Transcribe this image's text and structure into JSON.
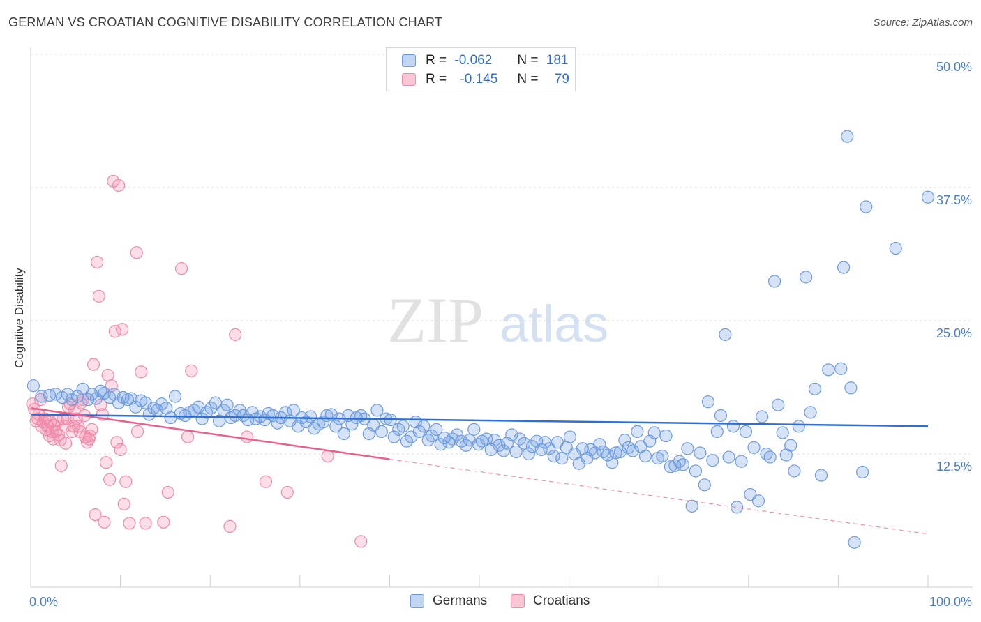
{
  "title": "GERMAN VS CROATIAN COGNITIVE DISABILITY CORRELATION CHART",
  "source": "Source: ZipAtlas.com",
  "watermark": "ZIPatlas",
  "legend_top": {
    "rows": [
      {
        "r_label": "R =",
        "r_value": "-0.062",
        "n_label": "N =",
        "n_value": "181"
      },
      {
        "r_label": "R =",
        "r_value": "-0.145",
        "n_label": "N =",
        "n_value": "79"
      }
    ]
  },
  "legend_bottom": [
    "Germans",
    "Croatians"
  ],
  "chart_data": {
    "type": "scatter",
    "title": "GERMAN VS CROATIAN COGNITIVE DISABILITY CORRELATION CHART",
    "xlabel": "",
    "ylabel": "Cognitive Disability",
    "xlim": [
      0,
      100
    ],
    "ylim": [
      0,
      50
    ],
    "x_tick_labels": [
      "0.0%",
      "100.0%"
    ],
    "y_tick_labels": [
      "12.5%",
      "25.0%",
      "37.5%",
      "50.0%"
    ],
    "y_ticks": [
      12.5,
      25.0,
      37.5,
      50.0
    ],
    "grid": true,
    "legend_position": "top-center",
    "colors": {
      "Germans": "#6c9be0",
      "Croatians": "#f08aaa",
      "germans_line": "#2f6fd1",
      "croatians_line": "#e8608c"
    },
    "series": [
      {
        "name": "Germans",
        "r": -0.062,
        "n": 181,
        "trend": {
          "x": [
            0,
            100
          ],
          "y": [
            16.2,
            15.1
          ]
        },
        "points": [
          [
            0.3,
            18.9
          ],
          [
            1.2,
            17.9
          ],
          [
            2.1,
            18.0
          ],
          [
            2.8,
            18.1
          ],
          [
            3.5,
            17.8
          ],
          [
            4.1,
            18.1
          ],
          [
            4.6,
            17.6
          ],
          [
            5.2,
            17.9
          ],
          [
            5.8,
            18.6
          ],
          [
            6.4,
            17.6
          ],
          [
            6.8,
            18.1
          ],
          [
            7.3,
            17.7
          ],
          [
            7.8,
            18.4
          ],
          [
            8.2,
            18.2
          ],
          [
            8.8,
            17.8
          ],
          [
            9.3,
            18.1
          ],
          [
            9.8,
            17.3
          ],
          [
            10.3,
            17.8
          ],
          [
            10.8,
            17.6
          ],
          [
            11.2,
            17.7
          ],
          [
            11.7,
            16.9
          ],
          [
            12.3,
            17.5
          ],
          [
            12.8,
            17.3
          ],
          [
            13.2,
            16.2
          ],
          [
            13.7,
            16.8
          ],
          [
            14.1,
            16.6
          ],
          [
            14.6,
            17.2
          ],
          [
            15.1,
            16.8
          ],
          [
            15.6,
            15.9
          ],
          [
            16.1,
            17.9
          ],
          [
            16.7,
            16.3
          ],
          [
            17.2,
            16.1
          ],
          [
            17.7,
            16.4
          ],
          [
            18.2,
            16.6
          ],
          [
            18.7,
            16.9
          ],
          [
            19.1,
            15.8
          ],
          [
            19.6,
            16.4
          ],
          [
            20.1,
            16.8
          ],
          [
            20.6,
            17.3
          ],
          [
            21.0,
            15.6
          ],
          [
            21.5,
            16.6
          ],
          [
            21.9,
            17.1
          ],
          [
            22.3,
            15.9
          ],
          [
            22.8,
            16.1
          ],
          [
            23.3,
            16.6
          ],
          [
            23.7,
            16.1
          ],
          [
            24.2,
            15.7
          ],
          [
            24.7,
            16.4
          ],
          [
            25.1,
            15.8
          ],
          [
            25.6,
            16.0
          ],
          [
            26.1,
            15.7
          ],
          [
            26.5,
            16.3
          ],
          [
            27.0,
            16.1
          ],
          [
            27.5,
            15.4
          ],
          [
            27.9,
            15.9
          ],
          [
            28.4,
            16.4
          ],
          [
            28.9,
            15.6
          ],
          [
            29.3,
            16.6
          ],
          [
            29.8,
            15.1
          ],
          [
            30.2,
            15.9
          ],
          [
            30.7,
            15.5
          ],
          [
            31.2,
            16.0
          ],
          [
            31.6,
            14.9
          ],
          [
            32.1,
            15.3
          ],
          [
            32.6,
            15.5
          ],
          [
            33.0,
            16.1
          ],
          [
            33.5,
            16.2
          ],
          [
            34.0,
            15.1
          ],
          [
            34.4,
            15.8
          ],
          [
            34.9,
            14.4
          ],
          [
            35.4,
            16.1
          ],
          [
            35.8,
            15.3
          ],
          [
            36.3,
            15.9
          ],
          [
            36.8,
            16.1
          ],
          [
            37.2,
            15.8
          ],
          [
            37.7,
            14.4
          ],
          [
            38.2,
            15.2
          ],
          [
            38.6,
            16.6
          ],
          [
            39.1,
            14.6
          ],
          [
            39.6,
            15.8
          ],
          [
            40.1,
            15.7
          ],
          [
            40.5,
            14.1
          ],
          [
            41.0,
            14.8
          ],
          [
            41.5,
            15.1
          ],
          [
            41.9,
            13.7
          ],
          [
            42.4,
            14.1
          ],
          [
            42.9,
            15.5
          ],
          [
            43.3,
            14.6
          ],
          [
            43.8,
            15.1
          ],
          [
            44.3,
            13.8
          ],
          [
            44.7,
            14.2
          ],
          [
            45.2,
            14.8
          ],
          [
            45.7,
            13.4
          ],
          [
            46.1,
            14.0
          ],
          [
            46.6,
            13.6
          ],
          [
            47.0,
            13.9
          ],
          [
            47.5,
            14.3
          ],
          [
            48.0,
            13.7
          ],
          [
            48.5,
            13.3
          ],
          [
            48.9,
            13.8
          ],
          [
            49.4,
            14.8
          ],
          [
            49.9,
            13.4
          ],
          [
            50.3,
            13.7
          ],
          [
            50.8,
            13.9
          ],
          [
            51.3,
            12.9
          ],
          [
            51.7,
            13.8
          ],
          [
            52.2,
            13.3
          ],
          [
            52.7,
            12.8
          ],
          [
            53.1,
            13.5
          ],
          [
            53.6,
            14.3
          ],
          [
            54.1,
            12.7
          ],
          [
            54.5,
            13.9
          ],
          [
            55.0,
            13.5
          ],
          [
            55.5,
            12.5
          ],
          [
            55.9,
            13.2
          ],
          [
            56.4,
            13.7
          ],
          [
            56.9,
            12.9
          ],
          [
            57.3,
            13.6
          ],
          [
            57.8,
            13.0
          ],
          [
            58.3,
            12.3
          ],
          [
            58.7,
            13.6
          ],
          [
            59.2,
            12.1
          ],
          [
            59.7,
            13.1
          ],
          [
            60.1,
            14.1
          ],
          [
            60.6,
            12.5
          ],
          [
            61.1,
            11.6
          ],
          [
            61.5,
            13.0
          ],
          [
            62.0,
            12.1
          ],
          [
            62.4,
            12.9
          ],
          [
            62.9,
            12.6
          ],
          [
            63.4,
            13.4
          ],
          [
            63.8,
            12.7
          ],
          [
            64.3,
            12.4
          ],
          [
            64.8,
            11.7
          ],
          [
            65.2,
            12.6
          ],
          [
            65.7,
            12.7
          ],
          [
            66.2,
            13.8
          ],
          [
            66.6,
            13.1
          ],
          [
            67.1,
            12.8
          ],
          [
            67.6,
            14.6
          ],
          [
            68.0,
            13.2
          ],
          [
            68.5,
            12.3
          ],
          [
            69.0,
            13.7
          ],
          [
            69.5,
            14.5
          ],
          [
            69.9,
            12.1
          ],
          [
            70.4,
            12.3
          ],
          [
            70.8,
            14.2
          ],
          [
            71.3,
            11.3
          ],
          [
            71.8,
            11.4
          ],
          [
            72.3,
            11.8
          ],
          [
            72.7,
            11.5
          ],
          [
            73.2,
            13.0
          ],
          [
            73.7,
            7.6
          ],
          [
            74.1,
            10.9
          ],
          [
            74.6,
            12.6
          ],
          [
            75.1,
            9.6
          ],
          [
            75.5,
            17.4
          ],
          [
            76.0,
            11.9
          ],
          [
            76.5,
            14.6
          ],
          [
            76.9,
            16.1
          ],
          [
            77.4,
            23.7
          ],
          [
            77.8,
            12.2
          ],
          [
            78.3,
            15.1
          ],
          [
            78.7,
            7.5
          ],
          [
            79.2,
            11.8
          ],
          [
            79.7,
            14.6
          ],
          [
            80.2,
            8.7
          ],
          [
            80.6,
            13.1
          ],
          [
            81.1,
            8.1
          ],
          [
            81.5,
            16.0
          ],
          [
            82.0,
            12.5
          ],
          [
            82.4,
            12.2
          ],
          [
            82.9,
            28.7
          ],
          [
            83.3,
            17.1
          ],
          [
            83.8,
            14.5
          ],
          [
            84.2,
            12.4
          ],
          [
            84.7,
            13.3
          ],
          [
            85.1,
            10.9
          ],
          [
            85.6,
            15.1
          ],
          [
            86.4,
            29.1
          ],
          [
            86.9,
            16.4
          ],
          [
            87.4,
            18.6
          ],
          [
            88.1,
            10.5
          ],
          [
            88.9,
            20.4
          ],
          [
            90.3,
            20.5
          ],
          [
            90.6,
            30.0
          ],
          [
            91.0,
            42.3
          ],
          [
            91.4,
            18.7
          ],
          [
            91.8,
            4.2
          ],
          [
            92.7,
            10.8
          ],
          [
            93.1,
            35.7
          ],
          [
            96.4,
            31.8
          ],
          [
            100.0,
            36.6
          ]
        ]
      },
      {
        "name": "Croatians",
        "r": -0.145,
        "n": 79,
        "trend": {
          "x": [
            0,
            40
          ],
          "y": [
            16.8,
            12.0
          ]
        },
        "trend_dashed": {
          "x": [
            40,
            100
          ],
          "y": [
            12.0,
            5.0
          ]
        },
        "points": [
          [
            0.2,
            17.2
          ],
          [
            0.4,
            16.7
          ],
          [
            0.6,
            15.6
          ],
          [
            0.8,
            15.8
          ],
          [
            0.9,
            16.2
          ],
          [
            1.1,
            17.6
          ],
          [
            1.2,
            15.1
          ],
          [
            1.4,
            15.5
          ],
          [
            1.6,
            15.8
          ],
          [
            1.7,
            14.8
          ],
          [
            1.9,
            15.1
          ],
          [
            2.1,
            14.2
          ],
          [
            2.2,
            15.5
          ],
          [
            2.4,
            14.6
          ],
          [
            2.5,
            13.9
          ],
          [
            2.6,
            15.2
          ],
          [
            2.8,
            14.6
          ],
          [
            3.0,
            15.6
          ],
          [
            3.1,
            14.3
          ],
          [
            3.3,
            13.8
          ],
          [
            3.4,
            11.4
          ],
          [
            3.6,
            15.8
          ],
          [
            3.8,
            15.1
          ],
          [
            3.9,
            13.5
          ],
          [
            4.1,
            15.8
          ],
          [
            4.2,
            16.9
          ],
          [
            4.4,
            17.2
          ],
          [
            4.6,
            14.6
          ],
          [
            4.8,
            15.1
          ],
          [
            4.9,
            16.6
          ],
          [
            5.1,
            15.8
          ],
          [
            5.3,
            15.1
          ],
          [
            5.5,
            14.6
          ],
          [
            5.6,
            17.3
          ],
          [
            5.8,
            17.6
          ],
          [
            6.0,
            16.1
          ],
          [
            6.1,
            14.1
          ],
          [
            6.3,
            13.6
          ],
          [
            6.5,
            13.9
          ],
          [
            6.6,
            14.2
          ],
          [
            6.8,
            14.8
          ],
          [
            7.0,
            20.9
          ],
          [
            7.2,
            6.8
          ],
          [
            7.4,
            30.5
          ],
          [
            7.6,
            27.3
          ],
          [
            7.8,
            17.1
          ],
          [
            8.0,
            16.2
          ],
          [
            8.2,
            6.1
          ],
          [
            8.4,
            11.7
          ],
          [
            8.6,
            19.9
          ],
          [
            8.8,
            10.1
          ],
          [
            9.0,
            18.9
          ],
          [
            9.2,
            38.1
          ],
          [
            9.4,
            24.0
          ],
          [
            9.6,
            13.6
          ],
          [
            9.8,
            37.7
          ],
          [
            10.0,
            12.9
          ],
          [
            10.2,
            24.2
          ],
          [
            10.4,
            7.8
          ],
          [
            10.6,
            9.9
          ],
          [
            11.0,
            6.0
          ],
          [
            11.8,
            31.4
          ],
          [
            11.9,
            14.6
          ],
          [
            12.3,
            20.2
          ],
          [
            12.8,
            6.0
          ],
          [
            14.8,
            6.1
          ],
          [
            15.3,
            8.9
          ],
          [
            16.8,
            29.9
          ],
          [
            17.5,
            14.1
          ],
          [
            17.9,
            20.3
          ],
          [
            22.2,
            5.7
          ],
          [
            22.8,
            23.7
          ],
          [
            24.1,
            14.1
          ],
          [
            26.2,
            9.9
          ],
          [
            28.6,
            8.9
          ],
          [
            33.1,
            12.3
          ],
          [
            36.8,
            4.3
          ]
        ]
      }
    ]
  }
}
